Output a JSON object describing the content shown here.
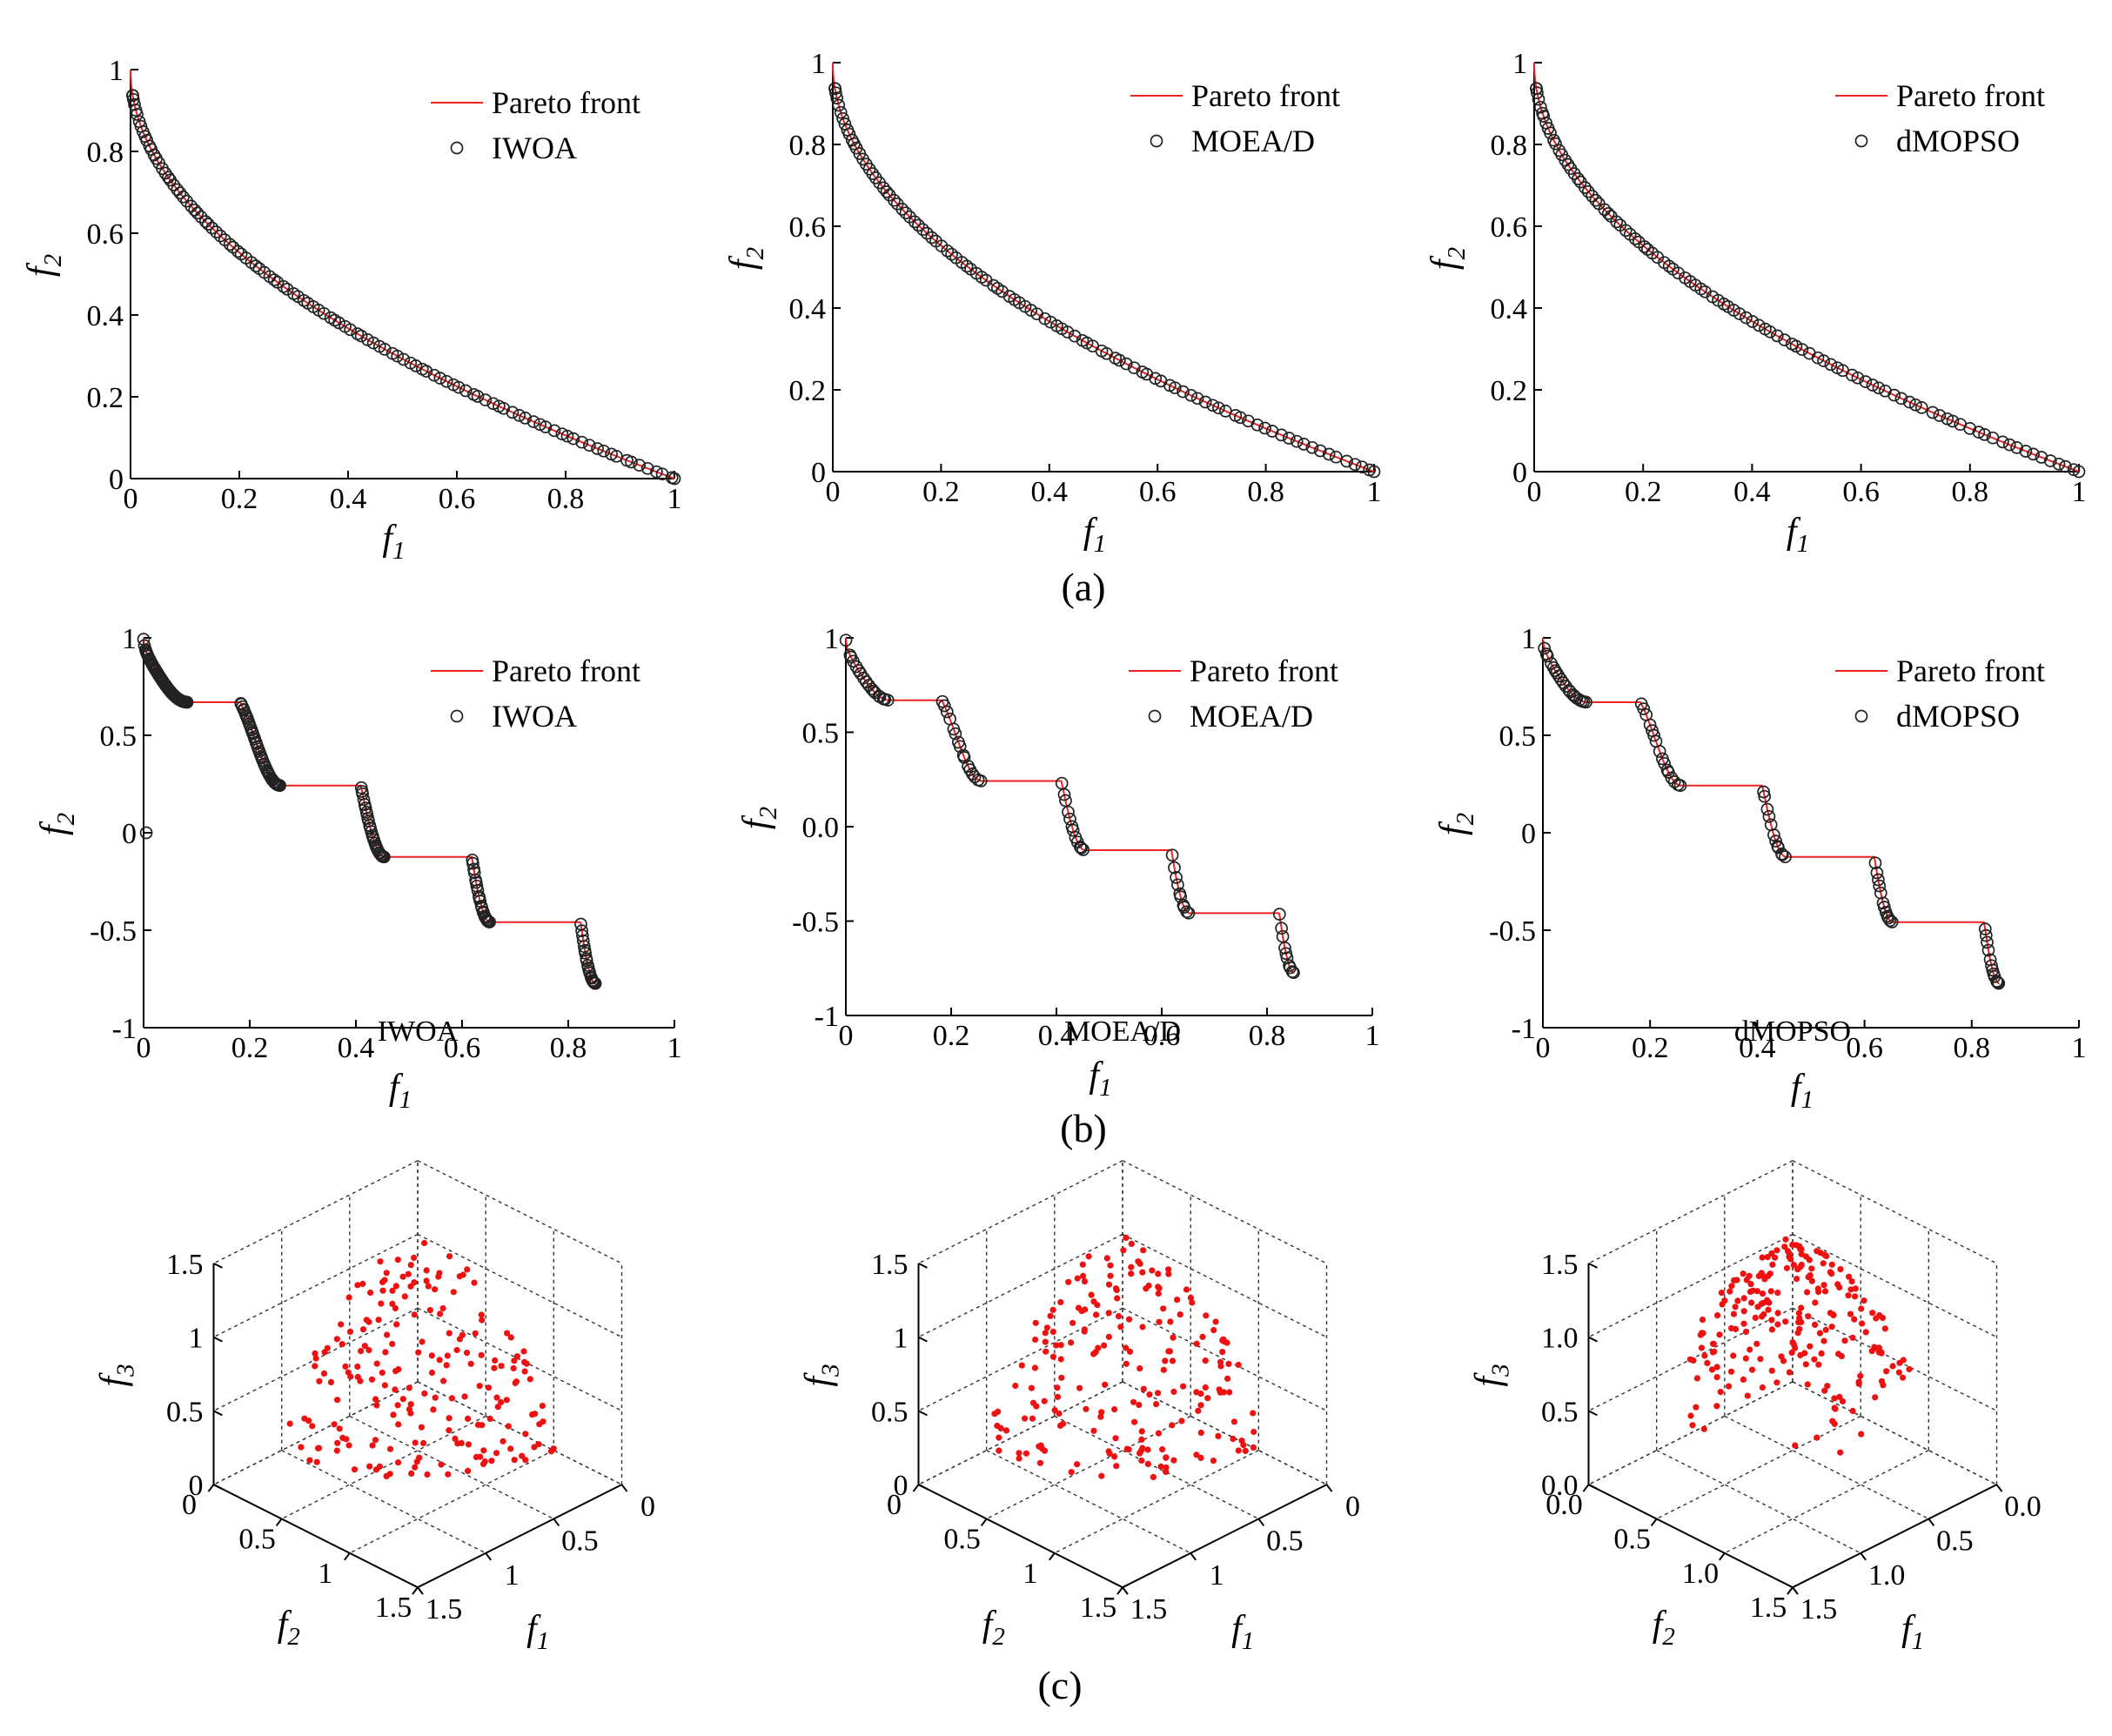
{
  "figure": {
    "panel_labels": [
      "(a)",
      "(b)",
      "(c)"
    ],
    "colors": {
      "front": "#ee2222",
      "marker": "#222222",
      "points3d": "#ee1111",
      "axis": "#000000",
      "grid": "#333333"
    }
  },
  "chart_data": [
    {
      "id": "a1",
      "type": "line+scatter",
      "panel": "(a)",
      "xlabel": {
        "main": "f",
        "sub": "1"
      },
      "ylabel": {
        "main": "f",
        "sub": "2"
      },
      "xlim": [
        0,
        1
      ],
      "ylim": [
        0,
        1
      ],
      "x_ticks": [
        0,
        0.2,
        0.4,
        0.6,
        0.8,
        1
      ],
      "x_tick_labels": [
        "0",
        "0.2",
        "0.4",
        "0.6",
        "0.8",
        "1"
      ],
      "y_ticks": [
        0,
        0.2,
        0.4,
        0.6,
        0.8,
        1
      ],
      "y_tick_labels": [
        "0",
        "0.2",
        "0.4",
        "0.6",
        "0.8",
        "1"
      ],
      "legend": {
        "placement": "top-right",
        "entries": [
          "Pareto front",
          "IWOA"
        ]
      },
      "pareto_front": {
        "name": "Pareto front",
        "formula": "f2 = 1 - sqrt(f1)",
        "f1_range": [
          0,
          1
        ]
      },
      "series": [
        {
          "name": "IWOA",
          "marker": "open-circle",
          "points": "110 points lying on the Pareto front, f1 from 0.005 to 1.0, dense throughout"
        }
      ]
    },
    {
      "id": "a2",
      "type": "line+scatter",
      "panel": "(a)",
      "xlabel": {
        "main": "f",
        "sub": "1"
      },
      "ylabel": {
        "main": "f",
        "sub": "2"
      },
      "xlim": [
        0,
        1
      ],
      "ylim": [
        0,
        1
      ],
      "x_ticks": [
        0,
        0.2,
        0.4,
        0.6,
        0.8,
        1
      ],
      "x_tick_labels": [
        "0",
        "0.2",
        "0.4",
        "0.6",
        "0.8",
        "1"
      ],
      "y_ticks": [
        0,
        0.2,
        0.4,
        0.6,
        0.8,
        1
      ],
      "y_tick_labels": [
        "0",
        "0.2",
        "0.4",
        "0.6",
        "0.8",
        "1"
      ],
      "legend": {
        "placement": "top-right",
        "entries": [
          "Pareto front",
          "MOEA/D"
        ]
      },
      "pareto_front": {
        "name": "Pareto front",
        "formula": "f2 = 1 - sqrt(f1)",
        "f1_range": [
          0,
          1
        ]
      },
      "series": [
        {
          "name": "MOEA/D",
          "marker": "open-circle",
          "points": "100 points lying on the Pareto front, f1 from 0.005 to 1.0"
        }
      ]
    },
    {
      "id": "a3",
      "type": "line+scatter",
      "panel": "(a)",
      "xlabel": {
        "main": "f",
        "sub": "1"
      },
      "ylabel": {
        "main": "f",
        "sub": "2"
      },
      "xlim": [
        0,
        1
      ],
      "ylim": [
        0,
        1
      ],
      "x_ticks": [
        0,
        0.2,
        0.4,
        0.6,
        0.8,
        1
      ],
      "x_tick_labels": [
        "0",
        "0.2",
        "0.4",
        "0.6",
        "0.8",
        "1"
      ],
      "y_ticks": [
        0,
        0.2,
        0.4,
        0.6,
        0.8,
        1
      ],
      "y_tick_labels": [
        "0",
        "0.2",
        "0.4",
        "0.6",
        "0.8",
        "1"
      ],
      "legend": {
        "placement": "top-right",
        "entries": [
          "Pareto front",
          "dMOPSO"
        ]
      },
      "pareto_front": {
        "name": "Pareto front",
        "formula": "f2 = 1 - sqrt(f1)",
        "f1_range": [
          0,
          1
        ]
      },
      "series": [
        {
          "name": "dMOPSO",
          "marker": "open-circle",
          "points": "100 points lying on the Pareto front, f1 from 0.005 to 1.0"
        }
      ]
    },
    {
      "id": "b1",
      "type": "line+scatter",
      "panel": "(b)",
      "xlabel": {
        "main": "f",
        "sub": "1"
      },
      "ylabel": {
        "main": "f",
        "sub": "2"
      },
      "xlim": [
        0,
        1
      ],
      "ylim": [
        -1,
        1
      ],
      "x_ticks": [
        0,
        0.2,
        0.4,
        0.6,
        0.8,
        1
      ],
      "x_tick_labels": [
        "0",
        "0.2",
        "0.4",
        "0.6",
        "0.8",
        "1"
      ],
      "y_ticks": [
        -1,
        -0.5,
        0,
        0.5,
        1
      ],
      "y_tick_labels": [
        "-1",
        "-0.5",
        "0",
        "0.5",
        "1"
      ],
      "legend": {
        "placement": "top-right",
        "entries": [
          "Pareto front",
          "IWOA"
        ]
      },
      "pareto_front": {
        "name": "Pareto front",
        "formula": "f2 = 1 - sqrt(f1) - f1*sin(10*pi*f1), non-dominated part",
        "segments": [
          [
            0,
            0.083
          ],
          [
            0.1822,
            0.2578
          ],
          [
            0.4093,
            0.4539
          ],
          [
            0.6184,
            0.6525
          ],
          [
            0.8233,
            0.8518
          ]
        ]
      },
      "series": [
        {
          "name": "IWOA",
          "marker": "open-circle",
          "points": "dense on every front segment (f1 ranges 0-0.083, 0.182-0.258, 0.409-0.454, 0.618-0.653, 0.823-0.852)",
          "outliers": [
            [
              0.005,
              0.0
            ]
          ]
        }
      ]
    },
    {
      "id": "b2",
      "type": "line+scatter",
      "panel": "(b)",
      "xlabel": {
        "main": "f",
        "sub": "1"
      },
      "ylabel": {
        "main": "f",
        "sub": "2"
      },
      "xlim": [
        0,
        1
      ],
      "ylim": [
        -1,
        1
      ],
      "x_ticks": [
        0,
        0.2,
        0.4,
        0.6,
        0.8,
        1
      ],
      "x_tick_labels": [
        "0",
        "0.2",
        "0.4",
        "0.6",
        "0.8",
        "1"
      ],
      "y_ticks": [
        -1,
        -0.5,
        0,
        0.5,
        1
      ],
      "y_tick_labels": [
        "-1",
        "-0.5",
        "0.0",
        "0.5",
        "1"
      ],
      "legend": {
        "placement": "top-right",
        "entries": [
          "Pareto front",
          "MOEA/D"
        ]
      },
      "pareto_front": {
        "name": "Pareto front",
        "formula": "f2 = 1 - sqrt(f1) - f1*sin(10*pi*f1), non-dominated part",
        "segments": [
          [
            0,
            0.083
          ],
          [
            0.1822,
            0.2578
          ],
          [
            0.4093,
            0.4539
          ],
          [
            0.6184,
            0.6525
          ],
          [
            0.8233,
            0.8518
          ]
        ]
      },
      "series": [
        {
          "name": "MOEA/D",
          "marker": "open-circle",
          "points": "sparser points on every front segment"
        }
      ]
    },
    {
      "id": "b3",
      "type": "line+scatter",
      "panel": "(b)",
      "xlabel": {
        "main": "f",
        "sub": "1"
      },
      "ylabel": {
        "main": "f",
        "sub": "2"
      },
      "xlim": [
        0,
        1
      ],
      "ylim": [
        -1,
        1
      ],
      "x_ticks": [
        0,
        0.2,
        0.4,
        0.6,
        0.8,
        1
      ],
      "x_tick_labels": [
        "0",
        "0.2",
        "0.4",
        "0.6",
        "0.8",
        "1"
      ],
      "y_ticks": [
        -1,
        -0.5,
        0,
        0.5,
        1
      ],
      "y_tick_labels": [
        "-1",
        "-0.5",
        "0",
        "0.5",
        "1"
      ],
      "legend": {
        "placement": "top-right",
        "entries": [
          "Pareto front",
          "dMOPSO"
        ]
      },
      "pareto_front": {
        "name": "Pareto front",
        "formula": "f2 = 1 - sqrt(f1) - f1*sin(10*pi*f1), non-dominated part",
        "segments": [
          [
            0,
            0.083
          ],
          [
            0.1822,
            0.2578
          ],
          [
            0.4093,
            0.4539
          ],
          [
            0.6184,
            0.6525
          ],
          [
            0.8233,
            0.8518
          ]
        ]
      },
      "series": [
        {
          "name": "dMOPSO",
          "marker": "open-circle",
          "points": "points on every front segment"
        }
      ]
    },
    {
      "id": "c1",
      "type": "scatter3d",
      "panel": "(c)",
      "title": "IWOA",
      "xlabel": {
        "main": "f",
        "sub": "1"
      },
      "ylabel": {
        "main": "f",
        "sub": "2"
      },
      "zlabel": {
        "main": "f",
        "sub": "3"
      },
      "xlim": [
        0,
        1.5
      ],
      "ylim": [
        0,
        1.5
      ],
      "zlim": [
        0,
        1.5
      ],
      "x_ticks": [
        0,
        0.5,
        1,
        1.5
      ],
      "x_tick_labels": [
        "0",
        "0.5",
        "1",
        "1.5"
      ],
      "y_ticks": [
        0,
        0.5,
        1,
        1.5
      ],
      "y_tick_labels": [
        "0",
        "0.5",
        "1",
        "1.5"
      ],
      "z_ticks": [
        0,
        0.5,
        1,
        1.5
      ],
      "z_tick_labels": [
        "0",
        "0.5",
        "1",
        "1.5"
      ],
      "series": [
        {
          "name": "",
          "marker": "red-dot",
          "count": 200,
          "points": "scattered over the quarter-sphere f1^2+f2^2+f3^2 = 1"
        }
      ]
    },
    {
      "id": "c2",
      "type": "scatter3d",
      "panel": "(c)",
      "title": "MOEA/D",
      "xlabel": {
        "main": "f",
        "sub": "1"
      },
      "ylabel": {
        "main": "f",
        "sub": "2"
      },
      "zlabel": {
        "main": "f",
        "sub": "3"
      },
      "xlim": [
        0,
        1.5
      ],
      "ylim": [
        0,
        1.5
      ],
      "zlim": [
        0,
        1.5
      ],
      "x_ticks": [
        0,
        0.5,
        1,
        1.5
      ],
      "x_tick_labels": [
        "0",
        "0.5",
        "1",
        "1.5"
      ],
      "y_ticks": [
        0,
        0.5,
        1,
        1.5
      ],
      "y_tick_labels": [
        "0",
        "0.5",
        "1",
        "1.5"
      ],
      "z_ticks": [
        0,
        0.5,
        1,
        1.5
      ],
      "z_tick_labels": [
        "0",
        "0.5",
        "1",
        "1.5"
      ],
      "series": [
        {
          "name": "",
          "marker": "red-dot",
          "count": 200,
          "points": "scattered over the quarter-sphere f1^2+f2^2+f3^2 = 1"
        }
      ]
    },
    {
      "id": "c3",
      "type": "scatter3d",
      "panel": "(c)",
      "title": "dMOPSO",
      "xlabel": {
        "main": "f",
        "sub": "1"
      },
      "ylabel": {
        "main": "f",
        "sub": "2"
      },
      "zlabel": {
        "main": "f",
        "sub": "3"
      },
      "xlim": [
        0,
        1.5
      ],
      "ylim": [
        0,
        1.5
      ],
      "zlim": [
        0,
        1.5
      ],
      "x_ticks": [
        0,
        0.5,
        1,
        1.5
      ],
      "x_tick_labels": [
        "0.0",
        "0.5",
        "1.0",
        "1.5"
      ],
      "y_ticks": [
        0,
        0.5,
        1,
        1.5
      ],
      "y_tick_labels": [
        "0.0",
        "0.5",
        "1.0",
        "1.5"
      ],
      "z_ticks": [
        0,
        0.5,
        1,
        1.5
      ],
      "z_tick_labels": [
        "0.0",
        "0.5",
        "1.0",
        "1.5"
      ],
      "series": [
        {
          "name": "",
          "marker": "red-dot",
          "count": 220,
          "points": "clustered toward the top of the quarter-sphere, many near the f3 apex"
        }
      ]
    }
  ]
}
